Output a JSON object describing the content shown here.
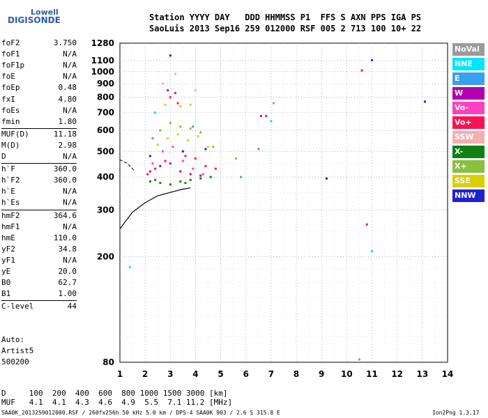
{
  "logo": {
    "line1": "Lowell",
    "line2": "DIGISONDE"
  },
  "header": {
    "line1": "Station YYYY DAY   DDD HHMMSS P1  FFS S AXN PPS IGA PS",
    "line2": "SaoLuis 2013 Sep16 259 012000 RSF 005 2 713 100 10+ 22"
  },
  "params": [
    {
      "k": "foF2",
      "v": "3.750"
    },
    {
      "k": "foF1",
      "v": "N/A"
    },
    {
      "k": "foF1p",
      "v": "N/A"
    },
    {
      "k": "foE",
      "v": "N/A"
    },
    {
      "k": "foEp",
      "v": "0.48"
    },
    {
      "k": "fxI",
      "v": "4.80"
    },
    {
      "k": "foEs",
      "v": "N/A"
    },
    {
      "k": "fmin",
      "v": "1.80"
    },
    {
      "k": "MUF(D)",
      "v": "11.18"
    },
    {
      "k": "M(D)",
      "v": "2.98"
    },
    {
      "k": "D",
      "v": "N/A"
    },
    {
      "k": "h`F",
      "v": "360.0"
    },
    {
      "k": "h`F2",
      "v": "360.0"
    },
    {
      "k": "h`E",
      "v": "N/A"
    },
    {
      "k": "h`Es",
      "v": "N/A"
    },
    {
      "k": "hmF2",
      "v": "364.6"
    },
    {
      "k": "hmF1",
      "v": "N/A"
    },
    {
      "k": "hmE",
      "v": "110.0"
    },
    {
      "k": "yF2",
      "v": "34.8"
    },
    {
      "k": "yF1",
      "v": "N/A"
    },
    {
      "k": "yE",
      "v": "20.0"
    },
    {
      "k": "B0",
      "v": "62.7"
    },
    {
      "k": "B1",
      "v": "1.00"
    },
    {
      "k": "C-level",
      "v": "44"
    }
  ],
  "auto": [
    "Auto:",
    "Artist5",
    "500200"
  ],
  "muf_table": {
    "d_line": "D     100  200  400  600  800 1000 1500 3000 [km]",
    "muf_line": "MUF   4.1  4.1  4.3  4.6  4.9  5.5  7.1 11.2 [MHz]"
  },
  "footer": "SAA0K_2013259012000.RSF / 260fx256h 50 kHz 5.0 km / DPS-4 SAA0K 903 / 2.6 S 315.8 E",
  "version": "Ion2Png 1.3.17",
  "legend": [
    {
      "label": "NoVal",
      "color": "#9a9a9a"
    },
    {
      "label": "NNE",
      "color": "#00e5ff"
    },
    {
      "label": "E",
      "color": "#3aa0f0"
    },
    {
      "label": "W",
      "color": "#b000b0"
    },
    {
      "label": "Vo-",
      "color": "#ff40c0"
    },
    {
      "label": "Vo+",
      "color": "#ff1050"
    },
    {
      "label": "SSW",
      "color": "#f4b0b0"
    },
    {
      "label": "X-",
      "color": "#108010"
    },
    {
      "label": "X+",
      "color": "#88c040"
    },
    {
      "label": "SSE",
      "color": "#d8d000"
    },
    {
      "label": "NNW",
      "color": "#2020d0"
    }
  ],
  "chart_data": {
    "type": "scatter",
    "title": "",
    "xlabel": "",
    "ylabel": "",
    "xlim": [
      1,
      14
    ],
    "ylim": [
      80,
      1280
    ],
    "yscale": "log",
    "x_ticks": [
      1,
      2,
      3,
      4,
      5,
      6,
      7,
      8,
      9,
      10,
      11,
      12,
      13,
      14
    ],
    "y_ticks": [
      80,
      200,
      300,
      400,
      500,
      600,
      700,
      800,
      900,
      1000,
      1100,
      1280
    ],
    "grid": "dotted",
    "legend_position": "right",
    "series": [
      {
        "name": "X-",
        "points": [
          [
            2.2,
            385
          ],
          [
            2.6,
            380
          ],
          [
            3.0,
            375
          ],
          [
            3.4,
            385
          ],
          [
            3.8,
            390
          ],
          [
            4.2,
            395
          ],
          [
            4.6,
            400
          ],
          [
            2.4,
            390
          ],
          [
            3.6,
            380
          ]
        ]
      },
      {
        "name": "Vo+",
        "points": [
          [
            2.1,
            410
          ],
          [
            2.4,
            430
          ],
          [
            2.8,
            460
          ],
          [
            3.0,
            800
          ],
          [
            3.2,
            830
          ],
          [
            3.3,
            760
          ],
          [
            3.6,
            480
          ],
          [
            4.0,
            470
          ],
          [
            4.4,
            440
          ],
          [
            4.8,
            430
          ],
          [
            10.6,
            1010
          ],
          [
            10.8,
            265
          ],
          [
            6.6,
            680
          ],
          [
            6.8,
            680
          ]
        ]
      },
      {
        "name": "Vo-",
        "points": [
          [
            2.3,
            450
          ],
          [
            2.7,
            500
          ],
          [
            3.1,
            520
          ],
          [
            3.5,
            460
          ],
          [
            3.9,
            430
          ],
          [
            4.3,
            410
          ],
          [
            6.5,
            510
          ]
        ]
      },
      {
        "name": "W",
        "points": [
          [
            2.2,
            420
          ],
          [
            2.6,
            440
          ],
          [
            3.0,
            450
          ],
          [
            3.4,
            420
          ],
          [
            3.8,
            410
          ],
          [
            4.2,
            405
          ],
          [
            2.9,
            850
          ]
        ]
      },
      {
        "name": "SSE",
        "points": [
          [
            2.5,
            530
          ],
          [
            2.9,
            560
          ],
          [
            3.3,
            580
          ],
          [
            3.7,
            550
          ],
          [
            4.1,
            570
          ],
          [
            4.5,
            520
          ],
          [
            2.8,
            750
          ],
          [
            3.4,
            740
          ],
          [
            3.8,
            750
          ]
        ]
      },
      {
        "name": "X+",
        "points": [
          [
            2.6,
            600
          ],
          [
            3.0,
            640
          ],
          [
            3.4,
            620
          ],
          [
            3.8,
            610
          ],
          [
            4.2,
            590
          ],
          [
            5.6,
            470
          ],
          [
            4.7,
            520
          ]
        ]
      },
      {
        "name": "NNW",
        "points": [
          [
            2.2,
            480
          ],
          [
            3.0,
            1150
          ],
          [
            3.5,
            500
          ],
          [
            4.4,
            510
          ],
          [
            13.1,
            770
          ],
          [
            9.2,
            395
          ],
          [
            11.0,
            1105
          ]
        ]
      },
      {
        "name": "NNE",
        "points": [
          [
            1.4,
            183
          ],
          [
            7.0,
            650
          ],
          [
            11.0,
            210
          ],
          [
            2.4,
            700
          ]
        ]
      },
      {
        "name": "E",
        "points": [
          [
            2.3,
            560
          ],
          [
            5.8,
            400
          ],
          [
            3.9,
            620
          ]
        ]
      },
      {
        "name": "SSW",
        "points": [
          [
            2.7,
            900
          ],
          [
            3.2,
            980
          ],
          [
            4.0,
            850
          ]
        ]
      },
      {
        "name": "NoVal",
        "points": [
          [
            10.5,
            82
          ],
          [
            7.1,
            760
          ]
        ]
      }
    ],
    "trace_curve": [
      [
        1.0,
        255
      ],
      [
        1.5,
        295
      ],
      [
        2.0,
        320
      ],
      [
        2.5,
        340
      ],
      [
        3.0,
        350
      ],
      [
        3.5,
        360
      ],
      [
        3.8,
        364
      ]
    ],
    "dashed_curve": [
      [
        1.0,
        465
      ],
      [
        1.3,
        450
      ],
      [
        1.6,
        420
      ]
    ]
  }
}
